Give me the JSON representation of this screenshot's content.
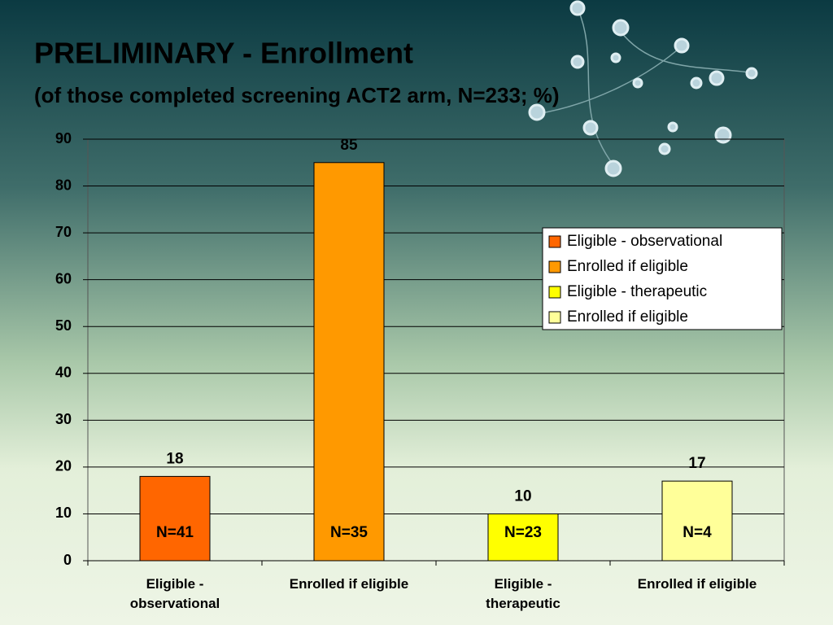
{
  "chart_data": {
    "type": "bar",
    "title": "PRELIMINARY - Enrollment",
    "subtitle": "(of those completed screening ACT2 arm, N=233; %)",
    "categories": [
      "Eligible -\nobservational",
      "Enrolled if eligible",
      "Eligible -\ntherapeutic",
      "Enrolled if eligible"
    ],
    "legend_entries": [
      "Eligible - observational",
      "Enrolled if eligible",
      "Eligible - therapeutic",
      "Enrolled if eligible"
    ],
    "values": [
      18,
      85,
      10,
      17
    ],
    "colors": [
      "#ff6600",
      "#ff9900",
      "#ffff00",
      "#ffff99"
    ],
    "bar_annotations": [
      "N=41",
      "N=35",
      "N=23",
      "N=4"
    ],
    "ylim": [
      0,
      90
    ],
    "yticks": [
      0,
      10,
      20,
      30,
      40,
      50,
      60,
      70,
      80,
      90
    ],
    "grid": true
  }
}
